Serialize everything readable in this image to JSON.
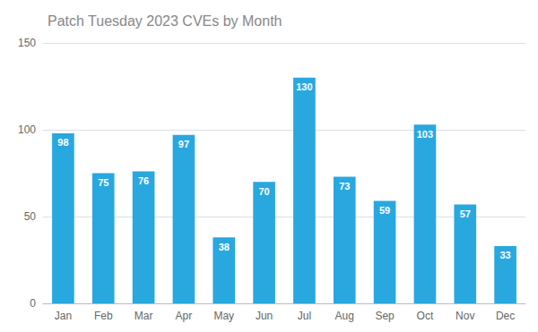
{
  "chart_data": {
    "type": "bar",
    "title": "Patch Tuesday 2023 CVEs by Month",
    "categories": [
      "Jan",
      "Feb",
      "Mar",
      "Apr",
      "May",
      "Jun",
      "Jul",
      "Aug",
      "Sep",
      "Oct",
      "Nov",
      "Dec"
    ],
    "values": [
      98,
      75,
      76,
      97,
      38,
      70,
      130,
      73,
      59,
      103,
      57,
      33
    ],
    "color": "#29a8e0",
    "ylim": [
      0,
      150
    ],
    "yticks": [
      0,
      50,
      100,
      150
    ],
    "grid": true,
    "data_labels": true
  }
}
